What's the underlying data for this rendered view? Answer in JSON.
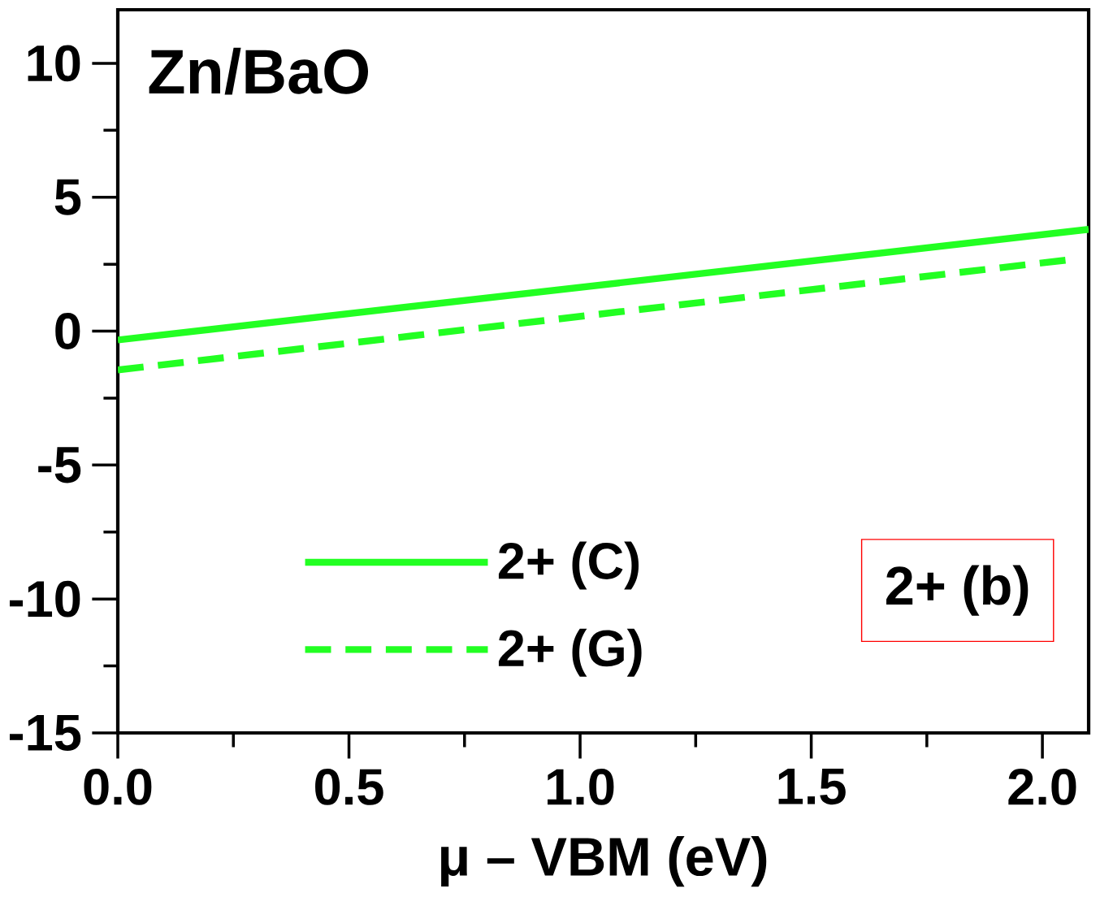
{
  "chart_data": {
    "type": "line",
    "title": "Zn/BaO",
    "xlabel": "μ – VBM (eV)",
    "xlim": [
      0,
      2.1
    ],
    "ylim": [
      -15,
      12
    ],
    "xticks": [
      {
        "value": 0,
        "label": "0.0"
      },
      0.5,
      {
        "value": 1,
        "label": "1.0"
      },
      1.5,
      {
        "value": 2,
        "label": "2.0"
      }
    ],
    "yticks": [
      -15,
      -10,
      -5,
      0,
      5,
      10
    ],
    "series": [
      {
        "name": "2+ (C)",
        "color": "#22ff22",
        "line_style": "solid",
        "x": [
          0,
          2.1
        ],
        "values": [
          -0.33,
          3.8
        ]
      },
      {
        "name": "2+ (G)",
        "color": "#22ff22",
        "line_style": "dashed",
        "x": [
          0,
          2.05
        ],
        "values": [
          -1.45,
          2.65
        ]
      }
    ],
    "legend": "bottom left",
    "grid": false,
    "marker": "none",
    "annotations": [
      "2+ (b)"
    ]
  }
}
